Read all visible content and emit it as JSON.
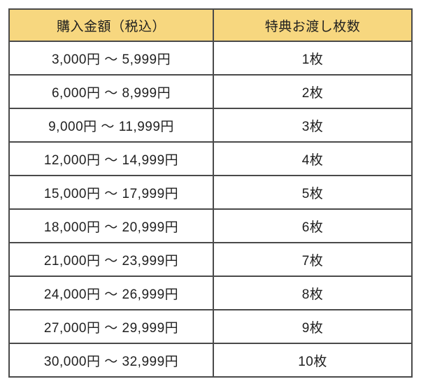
{
  "page": {
    "background": "#ffffff"
  },
  "table": {
    "title": "purchase-amount-reward-table",
    "columns": [
      "購入金額（税込）",
      "特典お渡し枚数"
    ],
    "rows": [
      {
        "range": "3,000円 〜 5,999円",
        "count": "1枚"
      },
      {
        "range": "6,000円 〜 8,999円",
        "count": "2枚"
      },
      {
        "range": "9,000円 〜 11,999円",
        "count": "3枚"
      },
      {
        "range": "12,000円 〜 14,999円",
        "count": "4枚"
      },
      {
        "range": "15,000円 〜 17,999円",
        "count": "5枚"
      },
      {
        "range": "18,000円 〜 20,999円",
        "count": "6枚"
      },
      {
        "range": "21,000円 〜 23,999円",
        "count": "7枚"
      },
      {
        "range": "24,000円 〜 26,999円",
        "count": "8枚"
      },
      {
        "range": "27,000円 〜 29,999円",
        "count": "9枚"
      },
      {
        "range": "30,000円 〜 32,999円",
        "count": "10枚"
      }
    ],
    "style": {
      "header_bg": "#f7d77f",
      "border_color": "#4a4a4a",
      "text_color": "#1f1f1f",
      "row_bg": "#ffffff"
    }
  }
}
